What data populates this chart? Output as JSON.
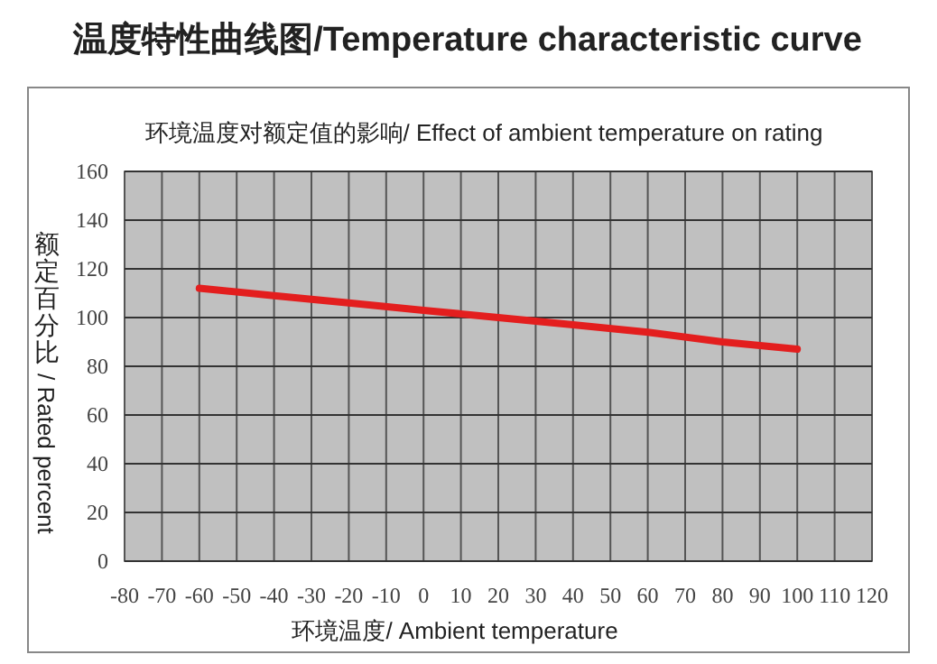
{
  "chart_data": {
    "type": "line",
    "title": "温度特性曲线图/Temperature characteristic curve",
    "subtitle": "环境温度对额定值的影响/ Effect of ambient temperature on rating",
    "xlabel": "环境温度/ Ambient temperature",
    "ylabel": "额定百分比/ Rated percent",
    "series": [
      {
        "color": "#e31e1e",
        "x": [
          -60,
          -40,
          -20,
          0,
          20,
          40,
          60,
          80,
          100
        ],
        "values": [
          112,
          109,
          106,
          103,
          100,
          97,
          94,
          90,
          87
        ]
      }
    ],
    "xlim": [
      -80,
      120
    ],
    "xticks": [
      -80,
      -70,
      -60,
      -50,
      -40,
      -30,
      -20,
      -10,
      0,
      10,
      20,
      30,
      40,
      50,
      60,
      70,
      80,
      90,
      100,
      110,
      120
    ],
    "ylim": [
      0,
      160
    ],
    "yticks": [
      0,
      20,
      40,
      60,
      80,
      100,
      120,
      140,
      160
    ],
    "grid": true,
    "marker": "none",
    "line_style": "solid"
  }
}
